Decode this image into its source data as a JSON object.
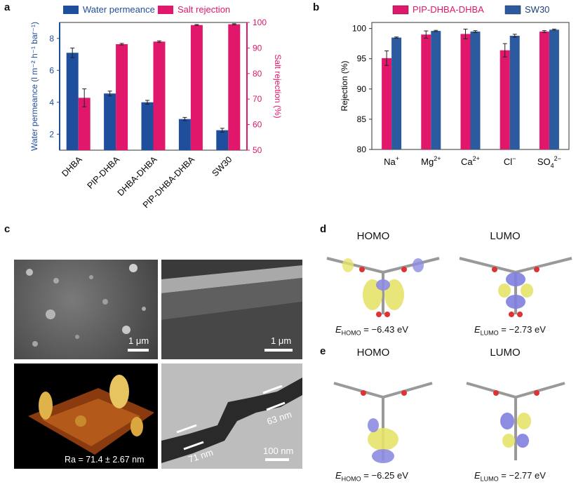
{
  "panels": {
    "a": "a",
    "b": "b",
    "c": "c",
    "d": "d",
    "e": "e"
  },
  "chart_data": [
    {
      "panel": "a",
      "type": "bar",
      "categories": [
        "DHBA",
        "PIP-DHBA",
        "DHBA-DHBA",
        "PIP-DHBA-DHBA",
        "SW30"
      ],
      "series": [
        {
          "name": "Water permeance",
          "axis": "left",
          "color": "#1f4e9c",
          "values": [
            7.1,
            4.55,
            4.0,
            2.95,
            2.25
          ],
          "errors": [
            0.3,
            0.15,
            0.12,
            0.1,
            0.12
          ]
        },
        {
          "name": "Salt rejection",
          "axis": "right",
          "color": "#e0176b",
          "values": [
            70.5,
            91.5,
            92.5,
            99.0,
            99.3
          ],
          "errors": [
            3.5,
            0.3,
            0.3,
            0.2,
            0.2
          ]
        }
      ],
      "ylabel": "Water permeance (l m⁻² h⁻¹ bar⁻¹)",
      "ylabel2": "Salt rejection (%)",
      "ylim": [
        1,
        9
      ],
      "yticks": [
        "2",
        "4",
        "6",
        "8"
      ],
      "ylim2": [
        50,
        100
      ],
      "yticks2": [
        "50",
        "60",
        "70",
        "80",
        "90",
        "100"
      ],
      "legend": "top"
    },
    {
      "panel": "b",
      "type": "bar",
      "categories": [
        "Na",
        "Mg",
        "Ca",
        "Cl",
        "SO"
      ],
      "category_sup": [
        "+",
        "2+",
        "2+",
        "−",
        "2−"
      ],
      "category_sub": [
        "",
        "",
        "",
        "",
        "4"
      ],
      "series": [
        {
          "name": "PIP-DHBA-DHBA",
          "color": "#e0176b",
          "values": [
            95.1,
            99.0,
            99.1,
            96.4,
            99.5
          ],
          "errors": [
            1.2,
            0.6,
            0.8,
            1.1,
            0.15
          ]
        },
        {
          "name": "SW30",
          "color": "#2c5a9e",
          "values": [
            98.5,
            99.6,
            99.5,
            98.8,
            99.8
          ],
          "errors": [
            0.1,
            0.1,
            0.15,
            0.25,
            0.1
          ]
        }
      ],
      "ylabel": "Rejection (%)",
      "ylim": [
        80,
        101
      ],
      "yticks": [
        "80",
        "85",
        "90",
        "95",
        "100"
      ],
      "legend": "top"
    }
  ],
  "panel_c": {
    "sem_top_scale": "1 μm",
    "sem_cross_scale": "1 μm",
    "afm_label": "Ra = 71.4 ± 2.67 nm",
    "tem_label_1": "71 nm",
    "tem_label_2": "63 nm",
    "tem_scale": "100 nm"
  },
  "panel_d": {
    "homo_title": "HOMO",
    "lumo_title": "LUMO",
    "homo_prefix": "E",
    "homo_sub": "HOMO",
    "homo_value": " = −6.43 eV",
    "lumo_prefix": "E",
    "lumo_sub": "LUMO",
    "lumo_value": " = −2.73 eV"
  },
  "panel_e": {
    "homo_title": "HOMO",
    "lumo_title": "LUMO",
    "homo_prefix": "E",
    "homo_sub": "HOMO",
    "homo_value": " = −6.25 eV",
    "lumo_prefix": "E",
    "lumo_sub": "LUMO",
    "lumo_value": " = −2.77 eV"
  }
}
